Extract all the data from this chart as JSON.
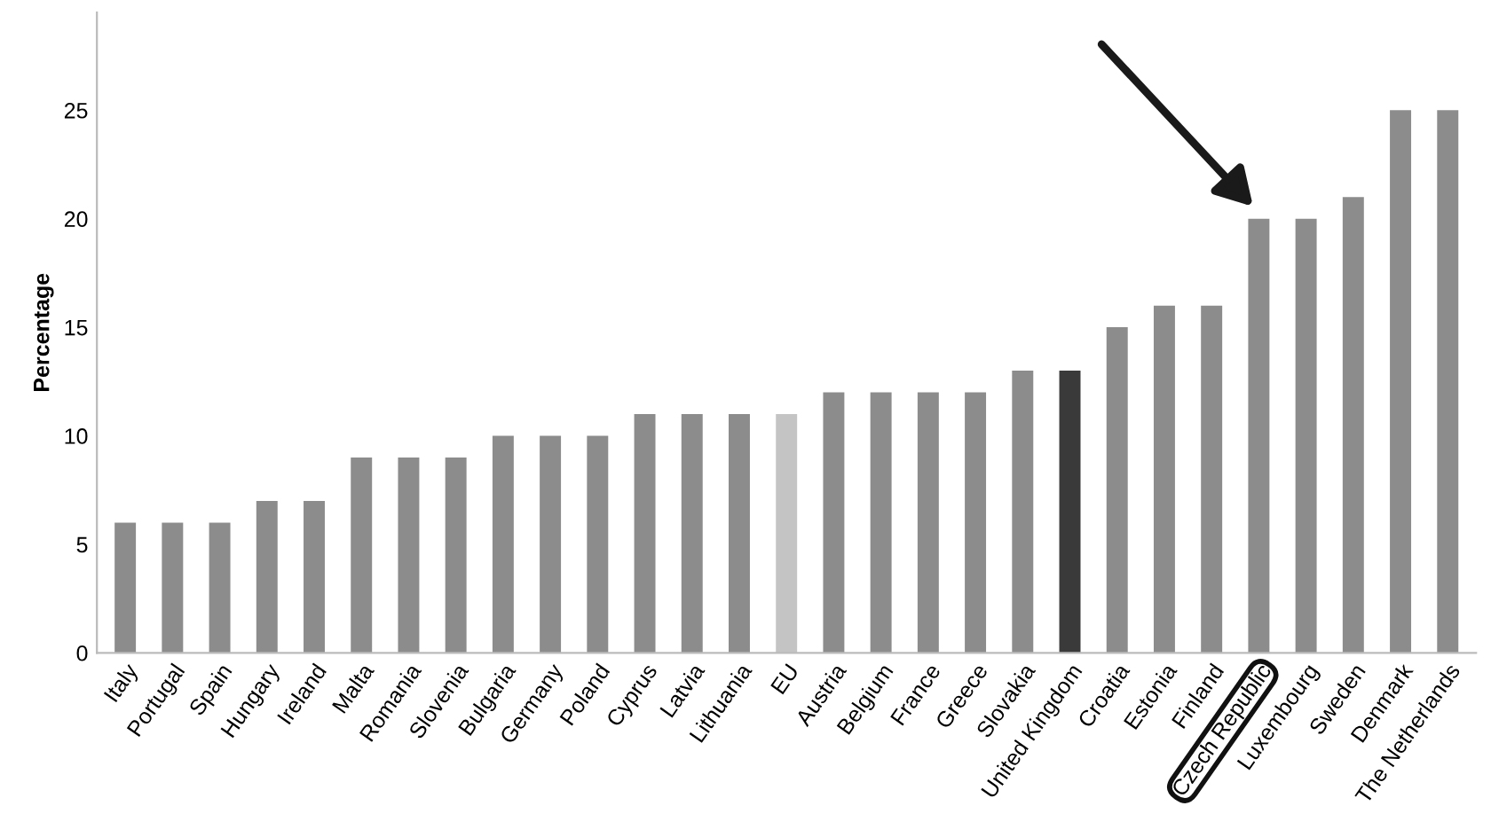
{
  "chart_data": {
    "type": "bar",
    "ylabel": "Percentage",
    "categories": [
      "Italy",
      "Portugal",
      "Spain",
      "Hungary",
      "Ireland",
      "Malta",
      "Romania",
      "Slovenia",
      "Bulgaria",
      "Germany",
      "Poland",
      "Cyprus",
      "Latvia",
      "Lithuania",
      "EU",
      "Austria",
      "Belgium",
      "France",
      "Greece",
      "Slovakia",
      "United Kingdom",
      "Croatia",
      "Estonia",
      "Finland",
      "Czech Republic",
      "Luxembourg",
      "Sweden",
      "Denmark",
      "The Netherlands"
    ],
    "values": [
      6,
      6,
      6,
      7,
      7,
      9,
      9,
      9,
      10,
      10,
      10,
      11,
      11,
      11,
      11,
      12,
      12,
      12,
      12,
      13,
      13,
      15,
      16,
      16,
      20,
      20,
      21,
      25,
      25
    ],
    "colors": [
      "#8c8c8c",
      "#8c8c8c",
      "#8c8c8c",
      "#8c8c8c",
      "#8c8c8c",
      "#8c8c8c",
      "#8c8c8c",
      "#8c8c8c",
      "#8c8c8c",
      "#8c8c8c",
      "#8c8c8c",
      "#8c8c8c",
      "#8c8c8c",
      "#8c8c8c",
      "#c4c4c4",
      "#8c8c8c",
      "#8c8c8c",
      "#8c8c8c",
      "#8c8c8c",
      "#8c8c8c",
      "#3a3a3a",
      "#8c8c8c",
      "#8c8c8c",
      "#8c8c8c",
      "#8c8c8c",
      "#8c8c8c",
      "#8c8c8c",
      "#8c8c8c",
      "#8c8c8c"
    ],
    "ylim": [
      0,
      29.5
    ],
    "yticks": [
      0,
      5,
      10,
      15,
      20,
      25
    ],
    "grid": false,
    "legend": false
  }
}
